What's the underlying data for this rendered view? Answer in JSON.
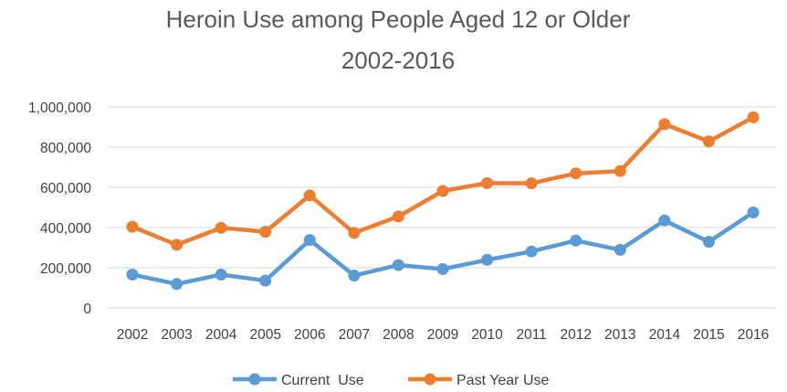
{
  "chart_data": {
    "type": "line",
    "title_line1": "Heroin Use among People Aged 12 or Older",
    "title_line2": "2002-2016",
    "xlabel": "",
    "ylabel": "",
    "categories": [
      "2002",
      "2003",
      "2004",
      "2005",
      "2006",
      "2007",
      "2008",
      "2009",
      "2010",
      "2011",
      "2012",
      "2013",
      "2014",
      "2015",
      "2016"
    ],
    "ylim": [
      0,
      1000000
    ],
    "yticks": [
      0,
      200000,
      400000,
      600000,
      800000,
      1000000
    ],
    "ytick_labels": [
      "0",
      "200,000",
      "400,000",
      "600,000",
      "800,000",
      "1,000,000"
    ],
    "grid": true,
    "legend_position": "bottom",
    "series": [
      {
        "name": "Current  Use",
        "color": "#5B9BD5",
        "values": [
          166000,
          119000,
          166000,
          136000,
          338000,
          161000,
          213000,
          193000,
          239000,
          281000,
          335000,
          289000,
          435000,
          329000,
          475000
        ]
      },
      {
        "name": "Past Year Use",
        "color": "#ED7D31",
        "values": [
          404000,
          314000,
          398000,
          379000,
          560000,
          373000,
          455000,
          582000,
          621000,
          620000,
          669000,
          681000,
          914000,
          828000,
          948000
        ]
      }
    ]
  }
}
